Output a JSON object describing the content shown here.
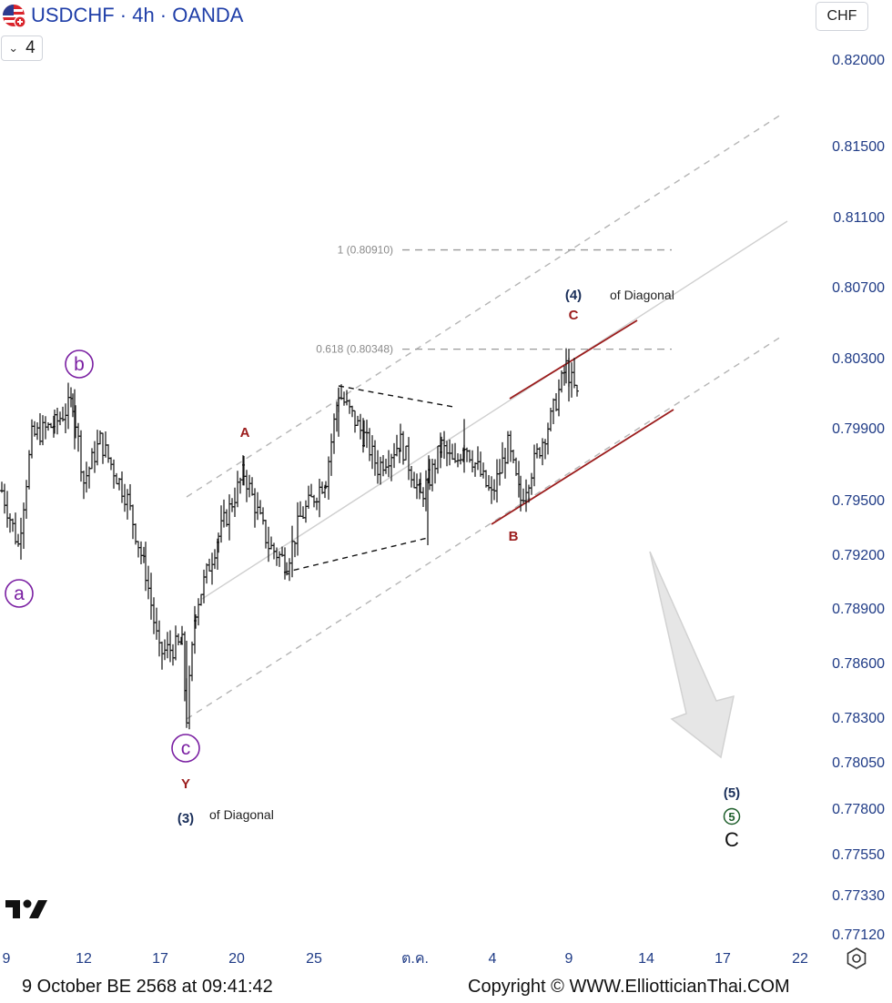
{
  "header": {
    "symbol_title": "USDCHF · 4h · OANDA",
    "collapse_count": "4",
    "currency": "CHF"
  },
  "footer": {
    "timestamp": "9 October BE 2568 at 09:41:42",
    "copyright": "Copyright © WWW.ElliotticianThai.COM"
  },
  "colors": {
    "wave_purple": "#7a1fa2",
    "wave_red": "#9b1c1c",
    "wave_navy": "#1a2f5a",
    "axis_text": "#1f3b86",
    "channel_red": "#9b1c1c",
    "grey_dash": "#b4b4b4",
    "grey_line": "#cfcfcf"
  },
  "chart_data": {
    "type": "candlestick",
    "ylim": [
      0.7705,
      0.8225
    ],
    "y_ticks": [
      "0.82000",
      "0.81500",
      "0.81100",
      "0.80700",
      "0.80300",
      "0.79900",
      "0.79500",
      "0.79200",
      "0.78900",
      "0.78600",
      "0.78300",
      "0.78050",
      "0.77800",
      "0.77550",
      "0.77330",
      "0.77120"
    ],
    "x_ticks": [
      "9",
      "12",
      "17",
      "20",
      "25",
      "ต.ค.",
      "4",
      "9",
      "14",
      "17",
      "22"
    ],
    "fib_levels": [
      {
        "label": "1 (0.80910)",
        "value": 0.8091
      },
      {
        "label": "0.618 (0.80348)",
        "value": 0.80348
      }
    ],
    "wave_labels": [
      {
        "id": "a",
        "text": "a",
        "style": "circle-purple"
      },
      {
        "id": "b",
        "text": "b",
        "style": "circle-purple"
      },
      {
        "id": "c",
        "text": "c",
        "style": "circle-purple"
      },
      {
        "id": "Y",
        "text": "Y",
        "style": "red"
      },
      {
        "id": "A",
        "text": "A",
        "style": "red"
      },
      {
        "id": "B",
        "text": "B",
        "style": "red"
      },
      {
        "id": "C_small",
        "text": "C",
        "style": "red"
      },
      {
        "id": "w4",
        "text": "(4)",
        "style": "navy"
      },
      {
        "id": "w3",
        "text": "(3)",
        "style": "navy"
      },
      {
        "id": "w5",
        "text": "(5)",
        "style": "navy"
      },
      {
        "id": "w5c",
        "text": "5",
        "style": "circle-green"
      },
      {
        "id": "C_big",
        "text": "C",
        "style": "black"
      }
    ],
    "annotations": [
      {
        "id": "diag4",
        "text": "of Diagonal"
      },
      {
        "id": "diag3",
        "text": "of Diagonal"
      }
    ]
  }
}
